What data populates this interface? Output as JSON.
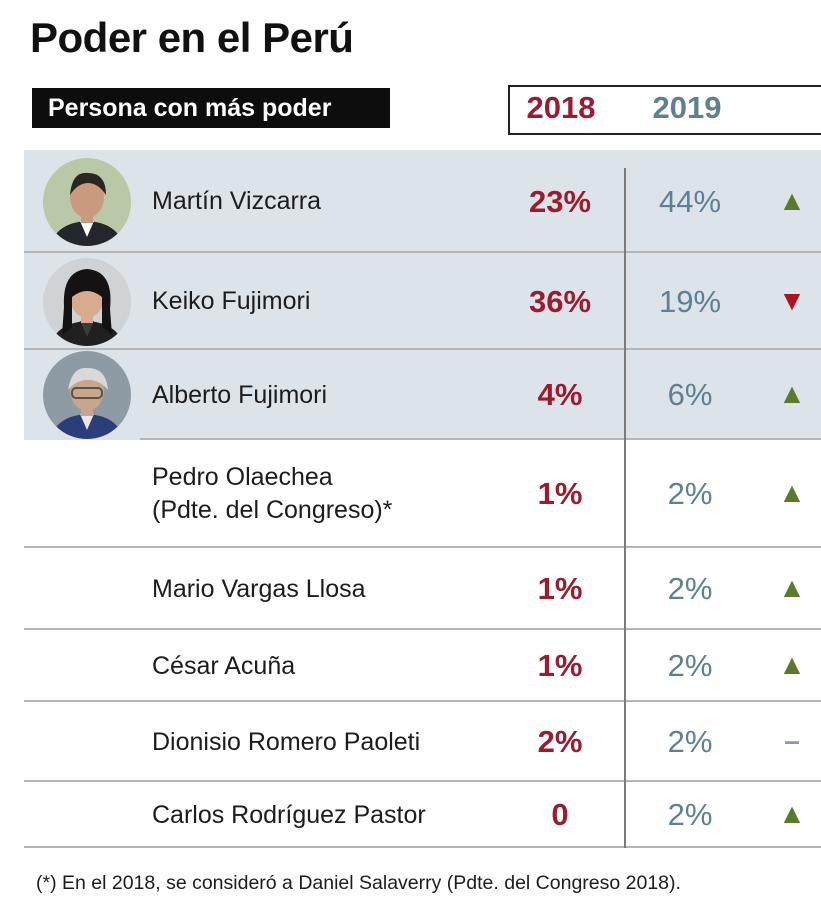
{
  "title": "Poder en el Perú",
  "subtitle": "Persona con más poder",
  "years": [
    "2018",
    "2019"
  ],
  "footnote": "(*) En el 2018, se consideró a Daniel Salaverry (Pdte. del Congreso 2018).",
  "colors": {
    "y2018": "#9b1b30",
    "y2019": "#5d8094",
    "up": "#5c7a2d",
    "down": "#b01121",
    "same": "#8a9ba7",
    "shade": "#dde4e9"
  },
  "rows": [
    {
      "name_lines": [
        "Martín Vizcarra"
      ],
      "v2018": "23%",
      "v2019": "44%",
      "trend": "up",
      "trend_icon": "▲",
      "has_photo": true,
      "photo": "photo-vizcarra"
    },
    {
      "name_lines": [
        "Keiko Fujimori"
      ],
      "v2018": "36%",
      "v2019": "19%",
      "trend": "down",
      "trend_icon": "▼",
      "has_photo": true,
      "photo": "photo-keiko"
    },
    {
      "name_lines": [
        "Alberto Fujimori"
      ],
      "v2018": "4%",
      "v2019": "6%",
      "trend": "up",
      "trend_icon": "▲",
      "has_photo": true,
      "photo": "photo-alberto"
    },
    {
      "name_lines": [
        "Pedro Olaechea",
        "(Pdte. del Congreso)*"
      ],
      "v2018": "1%",
      "v2019": "2%",
      "trend": "up",
      "trend_icon": "▲",
      "has_photo": false
    },
    {
      "name_lines": [
        "Mario Vargas Llosa"
      ],
      "v2018": "1%",
      "v2019": "2%",
      "trend": "up",
      "trend_icon": "▲",
      "has_photo": false
    },
    {
      "name_lines": [
        "César Acuña"
      ],
      "v2018": "1%",
      "v2019": "2%",
      "trend": "up",
      "trend_icon": "▲",
      "has_photo": false
    },
    {
      "name_lines": [
        "Dionisio Romero Paoleti"
      ],
      "v2018": "2%",
      "v2019": "2%",
      "trend": "same",
      "trend_icon": "–",
      "has_photo": false
    },
    {
      "name_lines": [
        "Carlos Rodríguez Pastor"
      ],
      "v2018": "0",
      "v2019": "2%",
      "trend": "up",
      "trend_icon": "▲",
      "has_photo": false
    }
  ],
  "chart_data": {
    "type": "table",
    "title": "Poder en el Perú",
    "subtitle": "Persona con más poder",
    "columns": [
      "2018",
      "2019"
    ],
    "categories": [
      "Martín Vizcarra",
      "Keiko Fujimori",
      "Alberto Fujimori",
      "Pedro Olaechea (Pdte. del Congreso)*",
      "Mario Vargas Llosa",
      "César Acuña",
      "Dionisio Romero Paoleti",
      "Carlos Rodríguez Pastor"
    ],
    "series": [
      {
        "name": "2018",
        "values": [
          23,
          36,
          4,
          1,
          1,
          1,
          2,
          0
        ]
      },
      {
        "name": "2019",
        "values": [
          44,
          19,
          6,
          2,
          2,
          2,
          2,
          2
        ]
      }
    ],
    "trend": [
      "up",
      "down",
      "up",
      "up",
      "up",
      "up",
      "same",
      "up"
    ]
  }
}
